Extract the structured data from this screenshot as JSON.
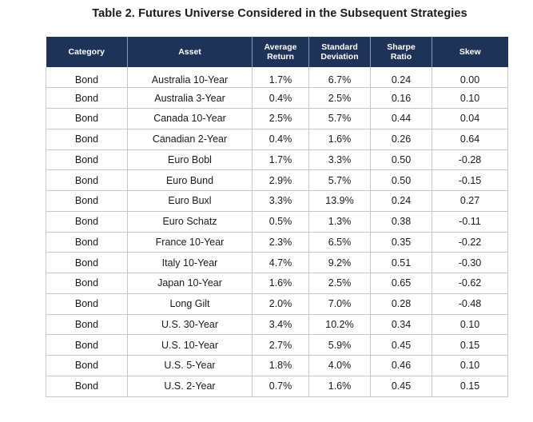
{
  "title": "Table 2. Futures Universe Considered in the Subsequent Strategies",
  "header": {
    "category": "Category",
    "asset": "Asset",
    "avg_return_line1": "Average",
    "avg_return_line2": "Return",
    "std_dev_line1": "Standard",
    "std_dev_line2": "Deviation",
    "sharpe_line1": "Sharpe",
    "sharpe_line2": "Ratio",
    "skew": "Skew"
  },
  "colors": {
    "header_background": "#1f3358",
    "header_text": "#ffffff",
    "grid": "#c8c8c8"
  },
  "rows": [
    {
      "category": "Bond",
      "asset": "Australia 10-Year",
      "avg_return": "1.7%",
      "std_dev": "6.7%",
      "sharpe": "0.24",
      "skew": "0.00"
    },
    {
      "category": "Bond",
      "asset": "Australia 3-Year",
      "avg_return": "0.4%",
      "std_dev": "2.5%",
      "sharpe": "0.16",
      "skew": "0.10"
    },
    {
      "category": "Bond",
      "asset": "Canada 10-Year",
      "avg_return": "2.5%",
      "std_dev": "5.7%",
      "sharpe": "0.44",
      "skew": "0.04"
    },
    {
      "category": "Bond",
      "asset": "Canadian 2-Year",
      "avg_return": "0.4%",
      "std_dev": "1.6%",
      "sharpe": "0.26",
      "skew": "0.64"
    },
    {
      "category": "Bond",
      "asset": "Euro Bobl",
      "avg_return": "1.7%",
      "std_dev": "3.3%",
      "sharpe": "0.50",
      "skew": "-0.28"
    },
    {
      "category": "Bond",
      "asset": "Euro Bund",
      "avg_return": "2.9%",
      "std_dev": "5.7%",
      "sharpe": "0.50",
      "skew": "-0.15"
    },
    {
      "category": "Bond",
      "asset": "Euro Buxl",
      "avg_return": "3.3%",
      "std_dev": "13.9%",
      "sharpe": "0.24",
      "skew": "0.27"
    },
    {
      "category": "Bond",
      "asset": "Euro Schatz",
      "avg_return": "0.5%",
      "std_dev": "1.3%",
      "sharpe": "0.38",
      "skew": "-0.11"
    },
    {
      "category": "Bond",
      "asset": "France 10-Year",
      "avg_return": "2.3%",
      "std_dev": "6.5%",
      "sharpe": "0.35",
      "skew": "-0.22"
    },
    {
      "category": "Bond",
      "asset": "Italy 10-Year",
      "avg_return": "4.7%",
      "std_dev": "9.2%",
      "sharpe": "0.51",
      "skew": "-0.30"
    },
    {
      "category": "Bond",
      "asset": "Japan 10-Year",
      "avg_return": "1.6%",
      "std_dev": "2.5%",
      "sharpe": "0.65",
      "skew": "-0.62"
    },
    {
      "category": "Bond",
      "asset": "Long Gilt",
      "avg_return": "2.0%",
      "std_dev": "7.0%",
      "sharpe": "0.28",
      "skew": "-0.48"
    },
    {
      "category": "Bond",
      "asset": "U.S. 30-Year",
      "avg_return": "3.4%",
      "std_dev": "10.2%",
      "sharpe": "0.34",
      "skew": "0.10"
    },
    {
      "category": "Bond",
      "asset": "U.S. 10-Year",
      "avg_return": "2.7%",
      "std_dev": "5.9%",
      "sharpe": "0.45",
      "skew": "0.15"
    },
    {
      "category": "Bond",
      "asset": "U.S. 5-Year",
      "avg_return": "1.8%",
      "std_dev": "4.0%",
      "sharpe": "0.46",
      "skew": "0.10"
    },
    {
      "category": "Bond",
      "asset": "U.S. 2-Year",
      "avg_return": "0.7%",
      "std_dev": "1.6%",
      "sharpe": "0.45",
      "skew": "0.15"
    }
  ]
}
